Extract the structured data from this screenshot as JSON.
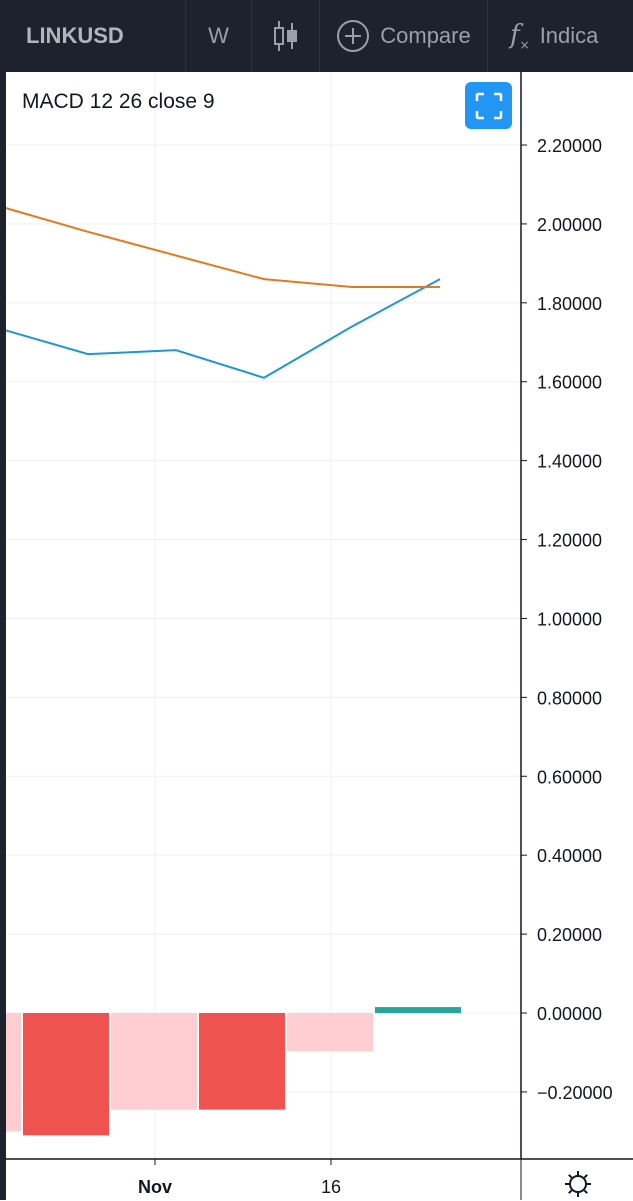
{
  "toolbar": {
    "symbol": "LINKUSD",
    "interval": "W",
    "chart_type_icon": "candlestick-icon",
    "compare_label": "Compare",
    "indicators_label": "Indicators",
    "indicators_visible": "Indica"
  },
  "indicator": {
    "legend": "MACD 12 26 close 9"
  },
  "colors": {
    "toolbar_bg": "#1e222d",
    "macd_line": "#2196d3",
    "signal_line": "#e07b20",
    "hist_neg_strong": "#ef5350",
    "hist_neg_weak": "#ffcdd2",
    "hist_pos": "#26a69a",
    "accent": "#2196f3"
  },
  "chart_data": {
    "type": "line",
    "title": "MACD 12 26 close 9",
    "x": [
      "",
      "",
      "Nov",
      "",
      "16",
      ""
    ],
    "x_tick_labels": [
      "Nov",
      "16"
    ],
    "y_tick_labels": [
      "2.20000",
      "2.00000",
      "1.80000",
      "1.60000",
      "1.40000",
      "1.20000",
      "1.00000",
      "0.80000",
      "0.60000",
      "0.40000",
      "0.20000",
      "0.00000",
      "−0.20000"
    ],
    "ylim": [
      -0.3,
      2.3
    ],
    "grid": true,
    "series": [
      {
        "kind": "line",
        "color": "#2196d3",
        "values": [
          1.73,
          1.67,
          1.68,
          1.61,
          1.74,
          1.86
        ]
      },
      {
        "kind": "line",
        "color": "#e07b20",
        "values": [
          2.04,
          1.98,
          1.92,
          1.86,
          1.84,
          1.84
        ]
      },
      {
        "kind": "histogram",
        "values": [
          -0.3,
          -0.31,
          -0.245,
          -0.245,
          -0.097,
          0.015
        ],
        "colors": [
          "#ffcdd2",
          "#ef5350",
          "#ffcdd2",
          "#ef5350",
          "#ffcdd2",
          "#26a69a"
        ]
      }
    ]
  }
}
